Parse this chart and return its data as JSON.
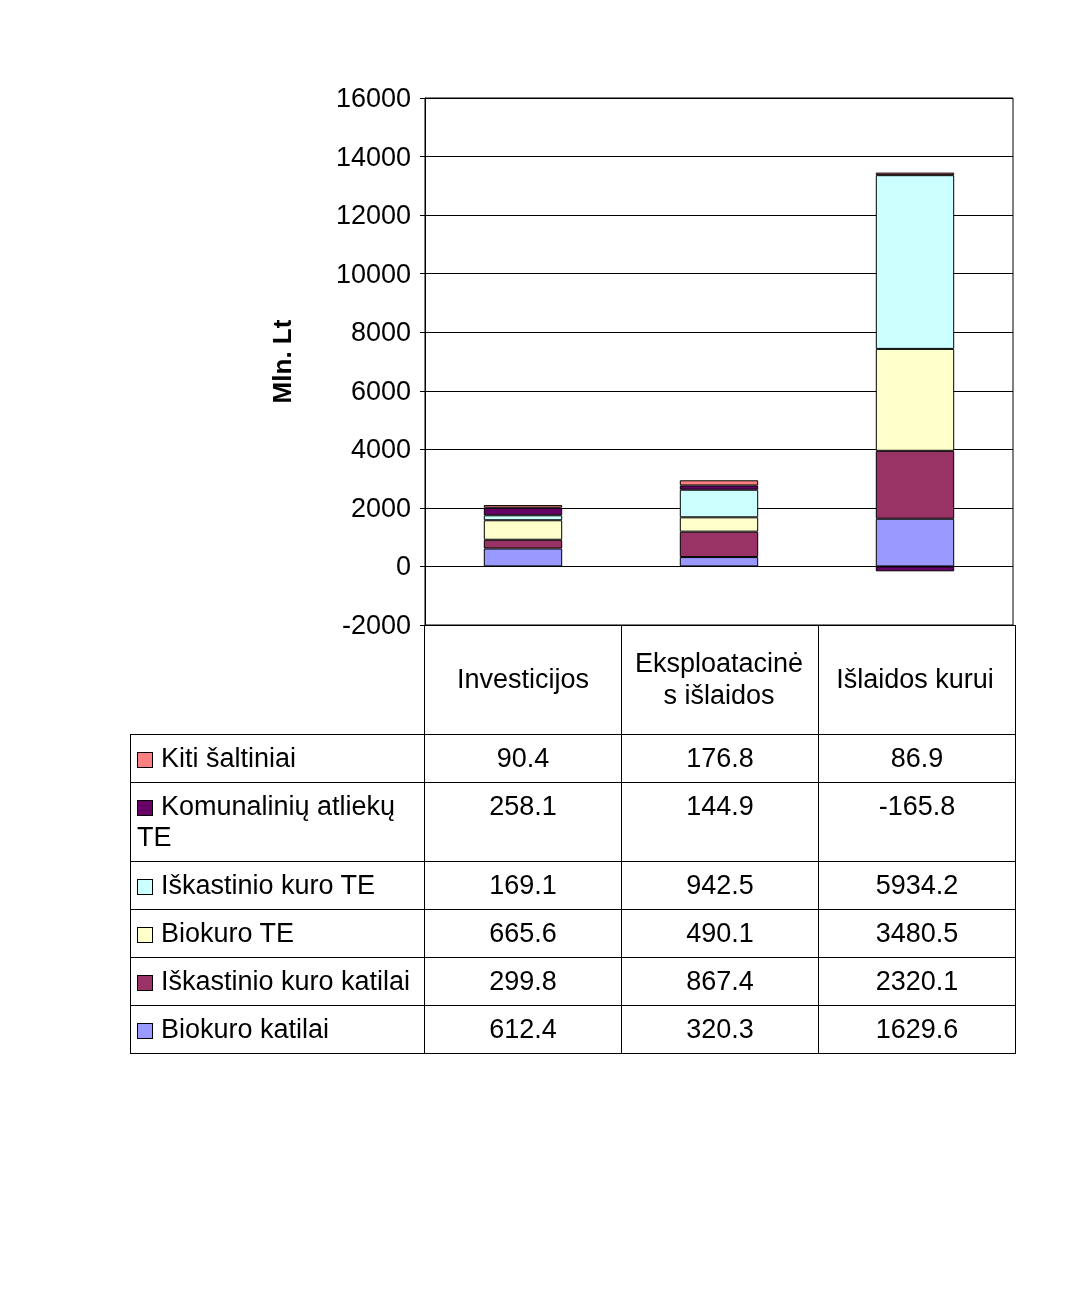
{
  "chart_data": {
    "type": "bar",
    "stacked": true,
    "ylabel": "Mln. Lt",
    "categories": [
      "Investicijos",
      "Eksploatacinės išlaidos",
      "Išlaidos kurui"
    ],
    "series": [
      {
        "name": "Biokuro katilai",
        "color": "#9999ff",
        "values": [
          612.4,
          320.3,
          1629.6
        ]
      },
      {
        "name": "Iškastinio kuro katilai",
        "color": "#993366",
        "values": [
          299.8,
          867.4,
          2320.1
        ]
      },
      {
        "name": "Biokuro TE",
        "color": "#ffffcc",
        "values": [
          665.6,
          490.1,
          3480.5
        ]
      },
      {
        "name": "Iškastinio kuro TE",
        "color": "#ccffff",
        "values": [
          169.1,
          942.5,
          5934.2
        ]
      },
      {
        "name": "Komunalinių atliekų TE",
        "color": "#660066",
        "values": [
          258.1,
          144.9,
          -165.8
        ]
      },
      {
        "name": "Kiti šaltiniai",
        "color": "#ff8080",
        "values": [
          90.4,
          176.8,
          86.9
        ]
      }
    ],
    "ylim": [
      -2000,
      16000
    ],
    "yticks": [
      -2000,
      0,
      2000,
      4000,
      6000,
      8000,
      10000,
      12000,
      14000,
      16000
    ],
    "grid": "y",
    "legend": "bottom",
    "data_labels": true
  }
}
